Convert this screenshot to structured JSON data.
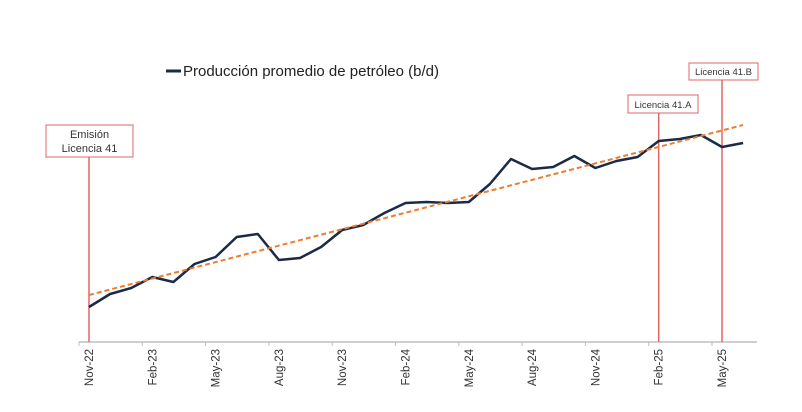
{
  "chart_data": {
    "type": "line",
    "title": "",
    "legend": [
      "Producción promedio de petróleo (b/d)"
    ],
    "legend_placement": "top",
    "x": [
      "Nov-22",
      "Dec-22",
      "Jan-23",
      "Feb-23",
      "Mar-23",
      "Apr-23",
      "May-23",
      "Jun-23",
      "Jul-23",
      "Aug-23",
      "Sep-23",
      "Oct-23",
      "Nov-23",
      "Dec-23",
      "Jan-24",
      "Feb-24",
      "Mar-24",
      "Apr-24",
      "May-24",
      "Jun-24",
      "Jul-24",
      "Aug-24",
      "Sep-24",
      "Oct-24",
      "Nov-24",
      "Dec-24",
      "Jan-25",
      "Feb-25",
      "Mar-25",
      "Apr-25",
      "May-25",
      "Jun-25"
    ],
    "tick_labels": [
      "Nov-22",
      "Feb-23",
      "May-23",
      "Aug-23",
      "Nov-23",
      "Feb-24",
      "May-24",
      "Aug-24",
      "Nov-24",
      "Feb-25",
      "May-25"
    ],
    "series": [
      {
        "name": "Producción promedio de petróleo (b/d)",
        "color": "#1b2a47",
        "values": [
          35,
          48,
          54,
          65,
          60,
          78,
          85,
          105,
          108,
          82,
          84,
          95,
          112,
          117,
          129,
          139,
          140,
          139,
          140,
          158,
          183,
          173,
          175,
          186,
          174,
          181,
          185,
          201,
          203,
          207,
          195,
          199
        ]
      }
    ],
    "trend": {
      "color": "#ed7d31",
      "start": 47,
      "end": 217
    },
    "ylim": [
      0,
      240
    ],
    "grid": false,
    "annotations": [
      {
        "month": "Nov-22",
        "line1": "Emisión",
        "line2": "Licencia 41"
      },
      {
        "month": "Feb-25",
        "label": "Licencia 41.A"
      },
      {
        "month": "May-25",
        "label": "Licencia 41.B"
      }
    ],
    "annotation_color": "#e06666"
  }
}
